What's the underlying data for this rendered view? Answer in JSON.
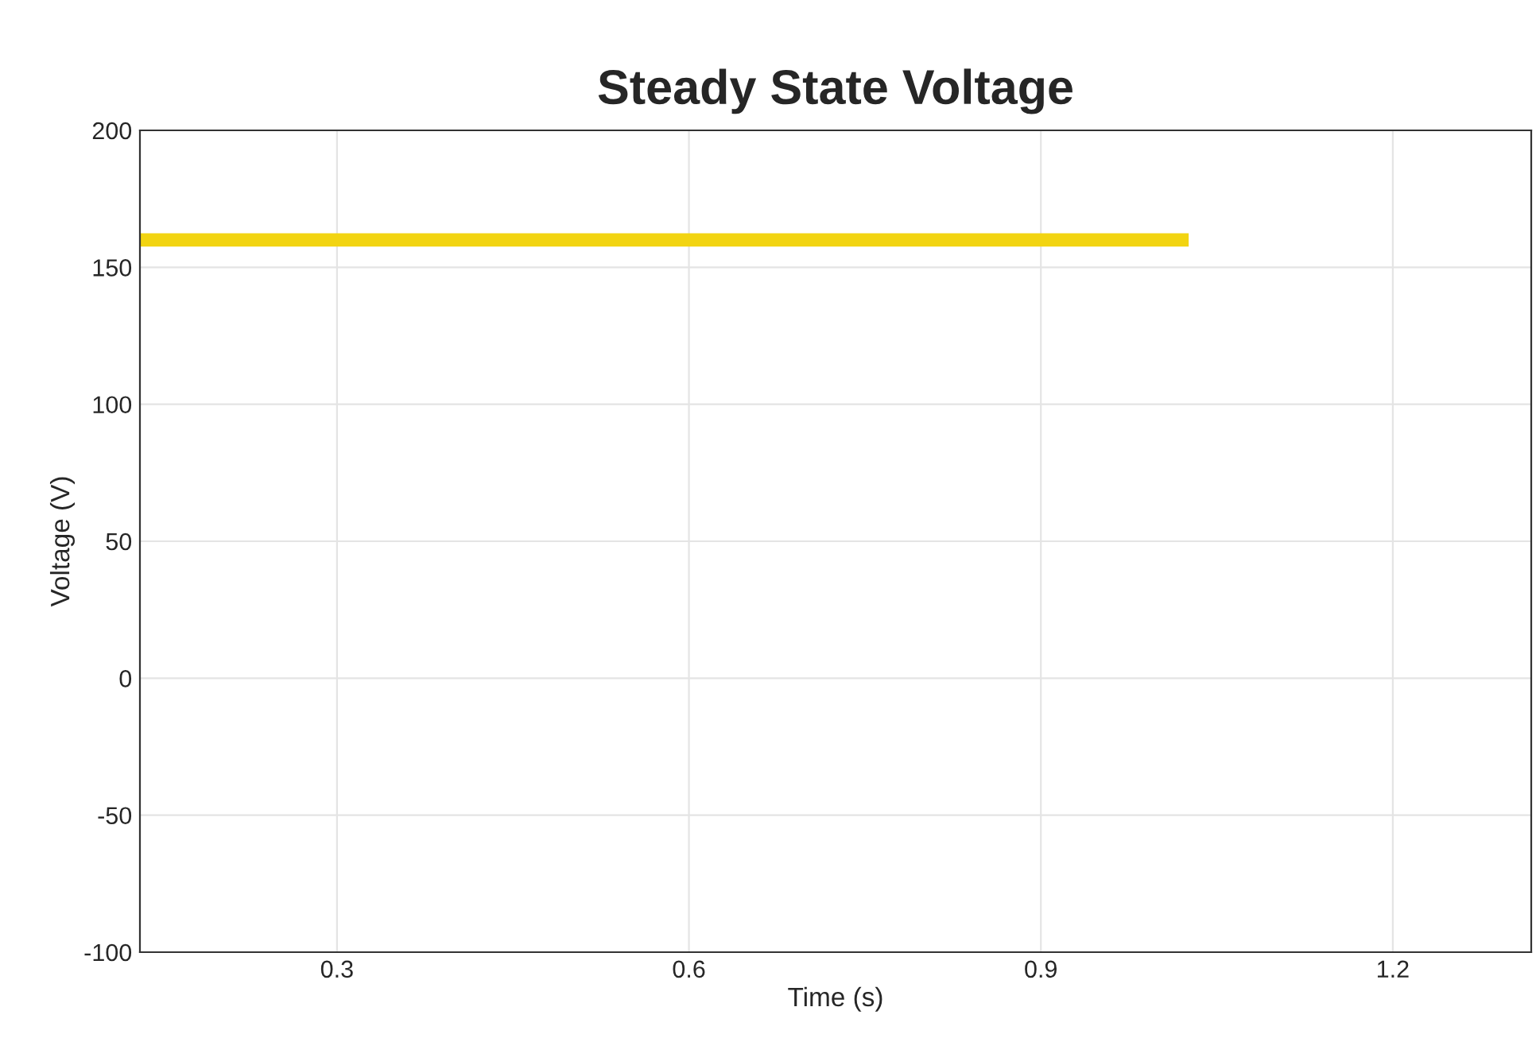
{
  "chart_data": {
    "type": "line",
    "title": "Steady State Voltage",
    "xlabel": "Time (s)",
    "ylabel": "Voltage (V)",
    "series": [
      {
        "color": "#f2d411",
        "x": [
          0.132,
          1.026
        ],
        "values": [
          160,
          160
        ]
      }
    ],
    "xlim": [
      0.132,
      1.318
    ],
    "xticks": [
      0.3,
      0.6,
      0.9,
      1.2
    ],
    "ylim": [
      -100,
      200
    ],
    "yticks": [
      -100,
      -50,
      0,
      50,
      100,
      150,
      200
    ],
    "grid": true,
    "marker": "none",
    "line_style": "solid"
  }
}
